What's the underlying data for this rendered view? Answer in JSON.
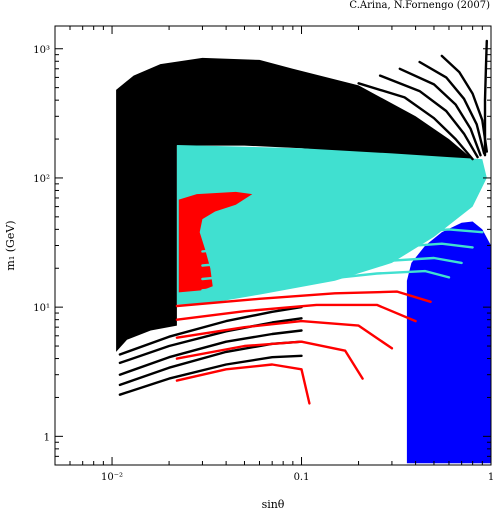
{
  "credit": "C.Arina, N.Fornengo (2007)",
  "chart_data": {
    "type": "scatter",
    "title": "",
    "xlabel": "sinθ",
    "ylabel": "m₁ (GeV)",
    "xscale": "log",
    "yscale": "log",
    "xlim": [
      0.005,
      1.0
    ],
    "ylim": [
      0.6,
      1500
    ],
    "grid": false,
    "legend": "none",
    "x_ticks": [
      {
        "value": 0.01,
        "label": "10⁻²"
      },
      {
        "value": 0.1,
        "label": "0.1"
      },
      {
        "value": 1.0,
        "label": "1"
      }
    ],
    "y_ticks": [
      {
        "value": 1,
        "label": "1"
      },
      {
        "value": 10,
        "label": "10¹"
      },
      {
        "value": 100,
        "label": "10²"
      },
      {
        "value": 1000,
        "label": "10³"
      }
    ],
    "colors": {
      "black": "#000000",
      "cyan": "#40e0d0",
      "red": "#ff0000",
      "blue": "#0000ff"
    },
    "regions": [
      {
        "color": "black",
        "polygon": [
          [
            0.0105,
            4.5
          ],
          [
            0.0105,
            480
          ],
          [
            0.013,
            620
          ],
          [
            0.018,
            760
          ],
          [
            0.03,
            850
          ],
          [
            0.06,
            820
          ],
          [
            0.09,
            700
          ],
          [
            0.2,
            520
          ],
          [
            0.4,
            300
          ],
          [
            0.6,
            200
          ],
          [
            0.8,
            140
          ],
          [
            0.8,
            125
          ],
          [
            0.5,
            135
          ],
          [
            0.25,
            150
          ],
          [
            0.1,
            170
          ],
          [
            0.05,
            178
          ],
          [
            0.022,
            178
          ],
          [
            0.022,
            7.2
          ],
          [
            0.016,
            6.6
          ],
          [
            0.012,
            5.6
          ]
        ]
      },
      {
        "color": "cyan",
        "polygon": [
          [
            0.022,
            180
          ],
          [
            0.1,
            170
          ],
          [
            0.3,
            155
          ],
          [
            0.6,
            145
          ],
          [
            0.9,
            140
          ],
          [
            0.95,
            100
          ],
          [
            0.8,
            60
          ],
          [
            0.5,
            35
          ],
          [
            0.3,
            22
          ],
          [
            0.15,
            16
          ],
          [
            0.06,
            12.5
          ],
          [
            0.03,
            10.5
          ],
          [
            0.022,
            10.5
          ]
        ]
      },
      {
        "color": "red",
        "polygon": [
          [
            0.0225,
            13.0
          ],
          [
            0.0225,
            68
          ],
          [
            0.028,
            75
          ],
          [
            0.045,
            78
          ],
          [
            0.055,
            75
          ],
          [
            0.045,
            62
          ],
          [
            0.035,
            55
          ],
          [
            0.03,
            48
          ],
          [
            0.029,
            38
          ],
          [
            0.031,
            28
          ],
          [
            0.033,
            20
          ],
          [
            0.034,
            14.5
          ],
          [
            0.03,
            13.5
          ]
        ]
      },
      {
        "color": "blue",
        "polygon": [
          [
            0.36,
            0.62
          ],
          [
            0.36,
            16
          ],
          [
            0.38,
            22
          ],
          [
            0.45,
            30
          ],
          [
            0.55,
            38
          ],
          [
            0.7,
            45
          ],
          [
            0.8,
            46
          ],
          [
            0.9,
            40
          ],
          [
            1.0,
            30
          ],
          [
            1.0,
            0.62
          ]
        ]
      }
    ],
    "bands": [
      {
        "color": "black",
        "points": [
          [
            0.011,
            2.1
          ],
          [
            0.02,
            2.8
          ],
          [
            0.04,
            3.6
          ],
          [
            0.07,
            4.1
          ],
          [
            0.1,
            4.2
          ]
        ]
      },
      {
        "color": "black",
        "points": [
          [
            0.011,
            2.5
          ],
          [
            0.02,
            3.4
          ],
          [
            0.04,
            4.5
          ],
          [
            0.07,
            5.2
          ],
          [
            0.1,
            5.4
          ]
        ]
      },
      {
        "color": "black",
        "points": [
          [
            0.011,
            3.0
          ],
          [
            0.02,
            4.1
          ],
          [
            0.04,
            5.4
          ],
          [
            0.07,
            6.2
          ],
          [
            0.1,
            6.6
          ]
        ]
      },
      {
        "color": "black",
        "points": [
          [
            0.011,
            3.7
          ],
          [
            0.02,
            5.0
          ],
          [
            0.04,
            6.5
          ],
          [
            0.07,
            7.6
          ],
          [
            0.1,
            8.2
          ]
        ]
      },
      {
        "color": "black",
        "points": [
          [
            0.011,
            4.3
          ],
          [
            0.02,
            5.9
          ],
          [
            0.04,
            7.8
          ],
          [
            0.07,
            9.2
          ],
          [
            0.1,
            10.0
          ]
        ]
      },
      {
        "color": "black",
        "points": [
          [
            0.2,
            540
          ],
          [
            0.35,
            420
          ],
          [
            0.5,
            290
          ],
          [
            0.65,
            200
          ],
          [
            0.8,
            140
          ]
        ]
      },
      {
        "color": "black",
        "points": [
          [
            0.26,
            620
          ],
          [
            0.42,
            470
          ],
          [
            0.58,
            330
          ],
          [
            0.72,
            220
          ],
          [
            0.85,
            145
          ]
        ]
      },
      {
        "color": "black",
        "points": [
          [
            0.33,
            700
          ],
          [
            0.5,
            530
          ],
          [
            0.65,
            370
          ],
          [
            0.78,
            240
          ],
          [
            0.88,
            150
          ]
        ]
      },
      {
        "color": "black",
        "points": [
          [
            0.42,
            790
          ],
          [
            0.58,
            600
          ],
          [
            0.72,
            410
          ],
          [
            0.84,
            260
          ],
          [
            0.92,
            155
          ]
        ]
      },
      {
        "color": "black",
        "points": [
          [
            0.55,
            880
          ],
          [
            0.68,
            660
          ],
          [
            0.8,
            450
          ],
          [
            0.9,
            280
          ],
          [
            0.95,
            160
          ]
        ]
      },
      {
        "color": "black",
        "points": [
          [
            0.95,
            1150
          ],
          [
            0.94,
            700
          ],
          [
            0.93,
            400
          ],
          [
            0.93,
            200
          ],
          [
            0.93,
            150
          ]
        ]
      },
      {
        "color": "red",
        "points": [
          [
            0.022,
            2.7
          ],
          [
            0.04,
            3.3
          ],
          [
            0.07,
            3.6
          ],
          [
            0.1,
            3.3
          ],
          [
            0.11,
            1.8
          ]
        ]
      },
      {
        "color": "red",
        "points": [
          [
            0.022,
            4.0
          ],
          [
            0.05,
            5.0
          ],
          [
            0.1,
            5.4
          ],
          [
            0.17,
            4.6
          ],
          [
            0.21,
            2.8
          ]
        ]
      },
      {
        "color": "red",
        "points": [
          [
            0.022,
            5.8
          ],
          [
            0.05,
            7.0
          ],
          [
            0.1,
            7.8
          ],
          [
            0.2,
            7.2
          ],
          [
            0.3,
            4.8
          ]
        ]
      },
      {
        "color": "red",
        "points": [
          [
            0.022,
            8.0
          ],
          [
            0.05,
            9.3
          ],
          [
            0.12,
            10.4
          ],
          [
            0.25,
            10.4
          ],
          [
            0.4,
            7.8
          ]
        ]
      },
      {
        "color": "red",
        "points": [
          [
            0.022,
            10.2
          ],
          [
            0.06,
            11.6
          ],
          [
            0.15,
            12.8
          ],
          [
            0.32,
            13.2
          ],
          [
            0.48,
            11.0
          ]
        ]
      },
      {
        "color": "cyan",
        "points": [
          [
            0.03,
            13.5
          ],
          [
            0.1,
            15.8
          ],
          [
            0.25,
            18.2
          ],
          [
            0.45,
            19.0
          ],
          [
            0.6,
            17.0
          ]
        ]
      },
      {
        "color": "cyan",
        "points": [
          [
            0.03,
            16.5
          ],
          [
            0.1,
            19.5
          ],
          [
            0.25,
            22.5
          ],
          [
            0.5,
            24.0
          ],
          [
            0.7,
            22.0
          ]
        ]
      },
      {
        "color": "cyan",
        "points": [
          [
            0.03,
            21.0
          ],
          [
            0.1,
            24.5
          ],
          [
            0.25,
            28.5
          ],
          [
            0.55,
            31.0
          ],
          [
            0.8,
            29.0
          ]
        ]
      },
      {
        "color": "cyan",
        "points": [
          [
            0.03,
            27.0
          ],
          [
            0.1,
            31.5
          ],
          [
            0.3,
            37.0
          ],
          [
            0.6,
            40.0
          ],
          [
            0.9,
            38.0
          ]
        ]
      }
    ]
  }
}
